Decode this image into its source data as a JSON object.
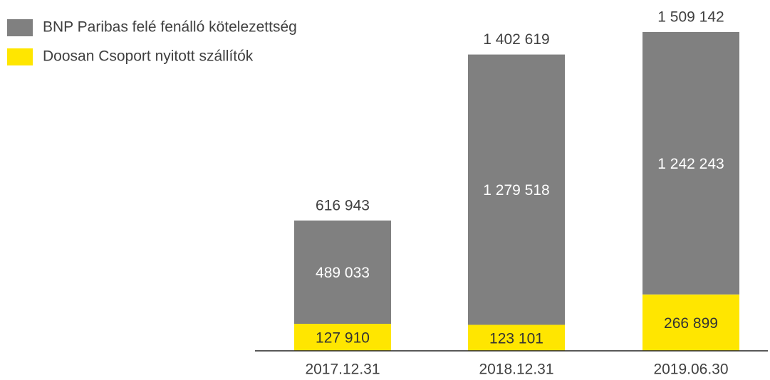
{
  "chart_data": {
    "type": "stacked-bar",
    "categories": [
      "2017.12.31",
      "2018.12.31",
      "2019.06.30"
    ],
    "series": [
      {
        "name": "Doosan Csoport nyitott szállítók",
        "color": "#ffe600",
        "label_color": "#333333",
        "values": [
          127910,
          123101,
          266899
        ],
        "value_labels": [
          "127 910",
          "123 101",
          "266 899"
        ]
      },
      {
        "name": "BNP Paribas felé fenálló kötelezettség",
        "color": "#808080",
        "label_color": "#ffffff",
        "values": [
          489033,
          1279518,
          1242243
        ],
        "value_labels": [
          "489 033",
          "1 279 518",
          "1 242 243"
        ]
      }
    ],
    "totals": [
      616943,
      1402619,
      1509142
    ],
    "total_labels": [
      "616 943",
      "1 402 619",
      "1 509 142"
    ],
    "ylim": [
      0,
      1600000
    ]
  }
}
